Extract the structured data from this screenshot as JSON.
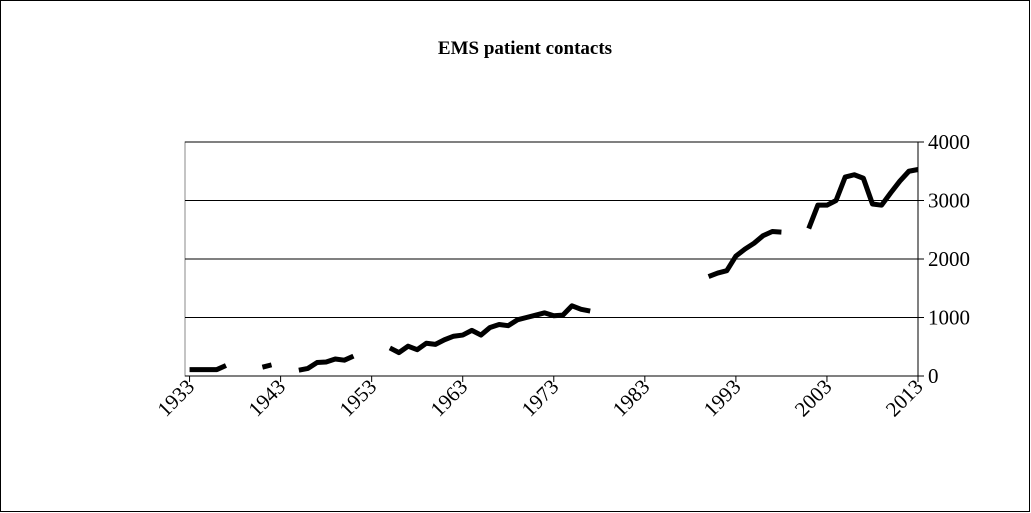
{
  "chart_data": {
    "type": "line",
    "title": "EMS patient contacts",
    "x": [
      1933,
      1934,
      1935,
      1936,
      1937,
      1938,
      1939,
      1940,
      1941,
      1942,
      1943,
      1944,
      1945,
      1946,
      1947,
      1948,
      1949,
      1950,
      1951,
      1952,
      1953,
      1954,
      1955,
      1956,
      1957,
      1958,
      1959,
      1960,
      1961,
      1962,
      1963,
      1964,
      1965,
      1966,
      1967,
      1968,
      1969,
      1970,
      1971,
      1972,
      1973,
      1974,
      1975,
      1976,
      1977,
      1978,
      1979,
      1980,
      1981,
      1982,
      1983,
      1984,
      1985,
      1986,
      1987,
      1988,
      1989,
      1990,
      1991,
      1992,
      1993,
      1994,
      1995,
      1996,
      1997,
      1998,
      1999,
      2000,
      2001,
      2002,
      2003,
      2004,
      2005,
      2006,
      2007,
      2008,
      2009,
      2010,
      2011,
      2012,
      2013
    ],
    "series": [
      {
        "name": "EMS patient contacts",
        "color": "#000000",
        "values": [
          110,
          110,
          110,
          110,
          180,
          null,
          null,
          null,
          150,
          190,
          null,
          null,
          100,
          130,
          230,
          240,
          290,
          270,
          340,
          null,
          null,
          null,
          480,
          400,
          510,
          450,
          560,
          540,
          620,
          680,
          700,
          780,
          700,
          830,
          880,
          860,
          960,
          1000,
          1040,
          1080,
          1030,
          1040,
          1200,
          1140,
          1110,
          null,
          null,
          null,
          null,
          null,
          null,
          null,
          null,
          null,
          null,
          null,
          null,
          1700,
          1760,
          1800,
          2050,
          2170,
          2270,
          2400,
          2470,
          2460,
          null,
          null,
          2520,
          2920,
          2920,
          3000,
          3400,
          3440,
          3380,
          2940,
          2920,
          3130,
          3330,
          3500,
          3530
        ]
      }
    ],
    "xlim": [
      1932.5,
      2013
    ],
    "xticks": [
      1933,
      1943,
      1953,
      1963,
      1973,
      1983,
      1993,
      2003,
      2013
    ],
    "ylim": [
      0,
      4000
    ],
    "yticks": [
      0,
      1000,
      2000,
      3000,
      4000
    ],
    "grid": true
  }
}
